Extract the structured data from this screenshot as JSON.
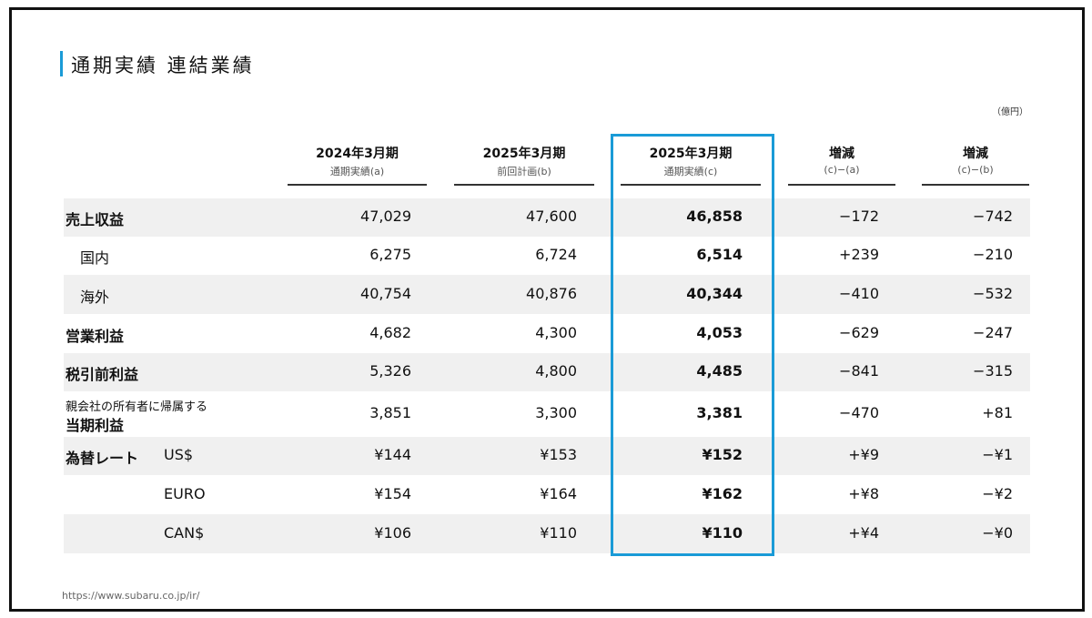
{
  "header": {
    "title": "通期実績 連結業績",
    "unit": "（億円）"
  },
  "table": {
    "columns": [
      {
        "label": "2024年3月期",
        "sublabel": "通期実績(a)"
      },
      {
        "label": "2025年3月期",
        "sublabel": "前回計画(b)"
      },
      {
        "label": "2025年3月期",
        "sublabel": "通期実績(c)"
      },
      {
        "label": "増減",
        "sublabel": "(c)−(a)"
      },
      {
        "label": "増減",
        "sublabel": "(c)−(b)"
      }
    ],
    "rows": [
      {
        "label": "売上収益",
        "values": [
          "47,029",
          "47,600",
          "46,858",
          "−172",
          "−742"
        ]
      },
      {
        "label": "国内",
        "indent": true,
        "values": [
          "6,275",
          "6,724",
          "6,514",
          "+239",
          "−210"
        ]
      },
      {
        "label": "海外",
        "indent": true,
        "values": [
          "40,754",
          "40,876",
          "40,344",
          "−410",
          "−532"
        ]
      },
      {
        "label": "営業利益",
        "values": [
          "4,682",
          "4,300",
          "4,053",
          "−629",
          "−247"
        ]
      },
      {
        "label": "税引前利益",
        "values": [
          "5,326",
          "4,800",
          "4,485",
          "−841",
          "−315"
        ]
      },
      {
        "pre_label": "親会社の所有者に帰属する",
        "label": "当期利益",
        "values": [
          "3,851",
          "3,300",
          "3,381",
          "−470",
          "+81"
        ]
      },
      {
        "label": "為替レート",
        "sublabel": "US$",
        "values": [
          "¥144",
          "¥153",
          "¥152",
          "+¥9",
          "−¥1"
        ]
      },
      {
        "sublabel": "EURO",
        "values": [
          "¥154",
          "¥164",
          "¥162",
          "+¥8",
          "−¥2"
        ]
      },
      {
        "sublabel": "CAN$",
        "values": [
          "¥106",
          "¥110",
          "¥110",
          "+¥4",
          "−¥0"
        ]
      }
    ]
  },
  "footer": {
    "url": "https://www.subaru.co.jp/ir/"
  }
}
